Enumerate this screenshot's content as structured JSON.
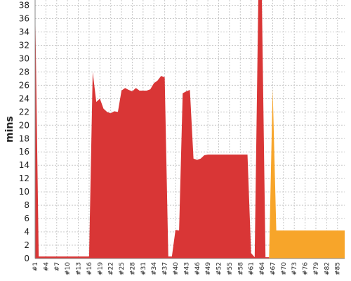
{
  "chart_data": {
    "type": "area",
    "ylabel": "mins",
    "xlabel": "",
    "ylim": [
      0,
      38.8
    ],
    "y_ticks": [
      0,
      2,
      4,
      6,
      8,
      10,
      12,
      14,
      16,
      18,
      20,
      22,
      24,
      26,
      28,
      30,
      32,
      34,
      36,
      38
    ],
    "x_tick_labels": [
      "#1",
      "#4",
      "#7",
      "#10",
      "#13",
      "#16",
      "#19",
      "#22",
      "#25",
      "#28",
      "#31",
      "#34",
      "#37",
      "#40",
      "#43",
      "#46",
      "#49",
      "#52",
      "#55",
      "#58",
      "#61",
      "#64",
      "#67",
      "#70",
      "#73",
      "#76",
      "#79",
      "#82",
      "#85"
    ],
    "x_range": [
      1,
      87
    ],
    "grid": true,
    "colors": {
      "red": "#d93636",
      "orange": "#f7a52a"
    },
    "series": [
      {
        "color": "red",
        "x": [
          1,
          2,
          16,
          17,
          18,
          19,
          20,
          21,
          22,
          23,
          24,
          25,
          26,
          27,
          28,
          29,
          30,
          31,
          32,
          33,
          34,
          35,
          36,
          37,
          38,
          39,
          40,
          41,
          42,
          43,
          44,
          45,
          46,
          47,
          48,
          49,
          50,
          60,
          61,
          62,
          63,
          64,
          65,
          66
        ],
        "y": [
          38.8,
          0.3,
          0.3,
          28,
          23.5,
          24,
          22.5,
          22,
          21.8,
          22.1,
          22,
          25.2,
          25.6,
          25.3,
          25.1,
          25.6,
          25.2,
          25.2,
          25.2,
          25.4,
          26.3,
          26.7,
          27.4,
          27.2,
          0.3,
          0.3,
          4.3,
          4.2,
          24.8,
          25.1,
          25.3,
          15,
          14.8,
          15,
          15.5,
          15.6,
          15.6,
          15.6,
          0.8,
          0.2,
          38.8,
          38.8,
          0.2,
          0.2
        ]
      },
      {
        "color": "orange",
        "x": [
          66,
          67,
          68,
          87
        ],
        "y": [
          0.2,
          25.5,
          4.2,
          4.2
        ]
      }
    ]
  }
}
